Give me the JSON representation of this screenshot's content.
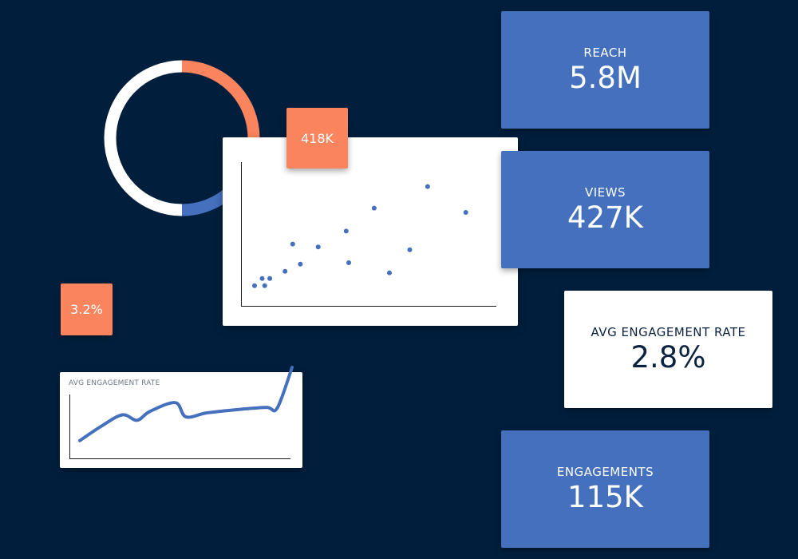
{
  "colors": {
    "background": "#011f3d",
    "accent_blue": "#4570bd",
    "accent_orange": "#fa845d",
    "white": "#ffffff"
  },
  "kpis": {
    "reach": {
      "label": "REACH",
      "value": "5.8M"
    },
    "views": {
      "label": "VIEWS",
      "value": "427K"
    },
    "avg_engagement": {
      "label": "AVG ENGAGEMENT RATE",
      "value": "2.8%"
    },
    "engagements": {
      "label": "ENGAGEMENTS",
      "value": "115K"
    }
  },
  "tags": {
    "scatter_tag": "418K",
    "rate_tag": "3.2%"
  },
  "chart_data": [
    {
      "type": "pie",
      "title": "",
      "style": "donut",
      "slices": [
        {
          "value": 25,
          "color": "#fa845d"
        },
        {
          "value": 25,
          "color": "#4570bd"
        },
        {
          "value": 50,
          "color": "#ffffff"
        }
      ]
    },
    {
      "type": "scatter",
      "title": "",
      "xlabel": "",
      "ylabel": "",
      "xlim": [
        0,
        100
      ],
      "ylim": [
        0,
        100
      ],
      "points": [
        [
          5,
          14
        ],
        [
          8,
          19
        ],
        [
          9,
          14
        ],
        [
          11,
          19
        ],
        [
          17,
          24
        ],
        [
          20,
          43
        ],
        [
          23,
          29
        ],
        [
          30,
          41
        ],
        [
          41,
          52
        ],
        [
          42,
          30
        ],
        [
          52,
          68
        ],
        [
          58,
          23
        ],
        [
          66,
          39
        ],
        [
          73,
          83
        ],
        [
          88,
          65
        ]
      ],
      "color": "#4570bd"
    },
    {
      "type": "line",
      "title": "AVG ENGAGEMENT RATE",
      "xlabel": "",
      "ylabel": "",
      "xlim": [
        0,
        100
      ],
      "ylim": [
        0,
        100
      ],
      "x": [
        0,
        10,
        20,
        27,
        33,
        45,
        50,
        60,
        75,
        88,
        93,
        100
      ],
      "y": [
        12,
        33,
        50,
        42,
        55,
        68,
        47,
        53,
        58,
        61,
        60,
        120
      ],
      "color": "#4570bd"
    }
  ]
}
